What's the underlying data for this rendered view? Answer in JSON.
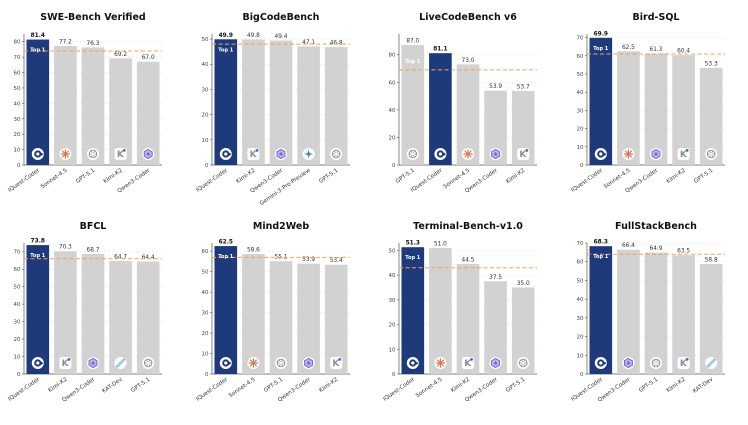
{
  "figure": {
    "colors": {
      "highlight": "#1f3a7a",
      "bar": "#d2d2d2",
      "reference": "#f0a060",
      "grid": "#dddddd"
    },
    "badge_label": "Top 1"
  },
  "chart_data": [
    {
      "type": "bar",
      "title": "SWE-Bench Verified",
      "categories": [
        "IQuest-Coder",
        "Sonnet-4.5",
        "GPT-5.1",
        "Kimi-K2",
        "Qwen3-Coder"
      ],
      "values": [
        81.4,
        77.2,
        76.3,
        69.2,
        67.0
      ],
      "value_labels": [
        "81.4",
        "77.2",
        "76.3",
        "69.2",
        "67.0"
      ],
      "icons": [
        "iquest-logo-icon",
        "anthropic-logo-icon",
        "openai-logo-icon",
        "kimi-logo-icon",
        "qwen-logo-icon"
      ],
      "ylim": [
        0,
        85
      ],
      "yticks": [
        0,
        10,
        20,
        30,
        40,
        50,
        60,
        70,
        80
      ],
      "reference_line": 74,
      "highlight_index": 0,
      "badge_position": "top-left-of-highlight"
    },
    {
      "type": "bar",
      "title": "BigCodeBench",
      "categories": [
        "IQuest-Coder",
        "Kimi-K2",
        "Qwen3-Coder",
        "Gemini-3-Pro-Preview",
        "GPT-5.1"
      ],
      "values": [
        49.9,
        49.8,
        49.4,
        47.1,
        46.8
      ],
      "value_labels": [
        "49.9",
        "49.8",
        "49.4",
        "47.1",
        "46.8"
      ],
      "icons": [
        "iquest-logo-icon",
        "kimi-logo-icon",
        "qwen-logo-icon",
        "gemini-logo-icon",
        "openai-logo-icon"
      ],
      "ylim": [
        0,
        52
      ],
      "yticks": [
        0,
        10,
        20,
        30,
        40,
        50
      ],
      "reference_line": 48,
      "highlight_index": 0,
      "badge_position": "top-left-of-highlight"
    },
    {
      "type": "bar",
      "title": "LiveCodeBench v6",
      "categories": [
        "GPT-5.1",
        "IQuest-Coder",
        "Sonnet-4.5",
        "Qwen3-Coder",
        "Kimi-K2"
      ],
      "values": [
        87.0,
        81.1,
        73.0,
        53.9,
        53.7
      ],
      "value_labels": [
        "87.0",
        "81.1",
        "73.0",
        "53.9",
        "53.7"
      ],
      "icons": [
        "openai-logo-icon",
        "iquest-logo-icon",
        "anthropic-logo-icon",
        "qwen-logo-icon",
        "kimi-logo-icon"
      ],
      "ylim": [
        0,
        95
      ],
      "yticks": [
        0,
        20,
        40,
        60,
        80
      ],
      "reference_line": 69,
      "highlight_index": 1,
      "badge_position": "left-of-highlight"
    },
    {
      "type": "bar",
      "title": "Bird-SQL",
      "categories": [
        "IQuest-Coder",
        "Sonnet-4.5",
        "Qwen3-Coder",
        "Kimi-K2",
        "GPT-5.1"
      ],
      "values": [
        69.9,
        62.5,
        61.3,
        60.4,
        53.3
      ],
      "value_labels": [
        "69.9",
        "62.5",
        "61.3",
        "60.4",
        "53.3"
      ],
      "icons": [
        "iquest-logo-icon",
        "anthropic-logo-icon",
        "qwen-logo-icon",
        "kimi-logo-icon",
        "openai-logo-icon"
      ],
      "ylim": [
        0,
        72
      ],
      "yticks": [
        0,
        10,
        20,
        30,
        40,
        50,
        60,
        70
      ],
      "reference_line": 61,
      "highlight_index": 0,
      "badge_position": "top-left-of-highlight"
    },
    {
      "type": "bar",
      "title": "BFCL",
      "categories": [
        "IQuest-Coder",
        "Kimi-K2",
        "Qwen3-Coder",
        "KAT-Dev",
        "GPT-5.1"
      ],
      "values": [
        73.8,
        70.3,
        68.7,
        64.7,
        64.4
      ],
      "value_labels": [
        "73.8",
        "70.3",
        "68.7",
        "64.7",
        "64.4"
      ],
      "icons": [
        "iquest-logo-icon",
        "kimi-logo-icon",
        "qwen-logo-icon",
        "kat-logo-icon",
        "openai-logo-icon"
      ],
      "ylim": [
        0,
        75
      ],
      "yticks": [
        0,
        10,
        20,
        30,
        40,
        50,
        60,
        70
      ],
      "reference_line": 66,
      "highlight_index": 0,
      "badge_position": "top-left-of-highlight"
    },
    {
      "type": "bar",
      "title": "Mind2Web",
      "categories": [
        "IQuest-Coder",
        "Sonnet-4.5",
        "GPT-5.1",
        "Qwen3-Coder",
        "Kimi-K2"
      ],
      "values": [
        62.5,
        58.6,
        55.1,
        53.9,
        53.4
      ],
      "value_labels": [
        "62.5",
        "58.6",
        "55.1",
        "53.9",
        "53.4"
      ],
      "icons": [
        "iquest-logo-icon",
        "anthropic-logo-icon",
        "openai-logo-icon",
        "qwen-logo-icon",
        "kimi-logo-icon"
      ],
      "ylim": [
        0,
        64
      ],
      "yticks": [
        0,
        10,
        20,
        30,
        40,
        50,
        60
      ],
      "reference_line": 57,
      "highlight_index": 0,
      "badge_position": "top-left-of-highlight"
    },
    {
      "type": "bar",
      "title": "Terminal-Bench-v1.0",
      "categories": [
        "IQuest-Coder",
        "Sonnet-4.5",
        "Kimi-K2",
        "Qwen3-Coder",
        "GPT-5.1"
      ],
      "values": [
        51.3,
        51.0,
        44.5,
        37.5,
        35.0
      ],
      "value_labels": [
        "51.3",
        "51.0",
        "44.5",
        "37.5",
        "35.0"
      ],
      "icons": [
        "iquest-logo-icon",
        "anthropic-logo-icon",
        "kimi-logo-icon",
        "qwen-logo-icon",
        "openai-logo-icon"
      ],
      "ylim": [
        0,
        53
      ],
      "yticks": [
        0,
        10,
        20,
        30,
        40,
        50
      ],
      "reference_line": 43,
      "highlight_index": 0,
      "badge_position": "top-left-of-highlight"
    },
    {
      "type": "bar",
      "title": "FullStackBench",
      "categories": [
        "IQuest-Coder",
        "Qwen3-Coder",
        "GPT-5.1",
        "Kimi-K2",
        "KAT-Dev"
      ],
      "values": [
        68.3,
        66.4,
        64.9,
        63.5,
        58.8
      ],
      "value_labels": [
        "68.3",
        "66.4",
        "64.9",
        "63.5",
        "58.8"
      ],
      "icons": [
        "iquest-logo-icon",
        "qwen-logo-icon",
        "openai-logo-icon",
        "kimi-logo-icon",
        "kat-logo-icon"
      ],
      "ylim": [
        0,
        70
      ],
      "yticks": [
        0,
        10,
        20,
        30,
        40,
        50,
        60,
        70
      ],
      "reference_line": 64,
      "highlight_index": 0,
      "badge_position": "top-left-of-highlight"
    }
  ]
}
